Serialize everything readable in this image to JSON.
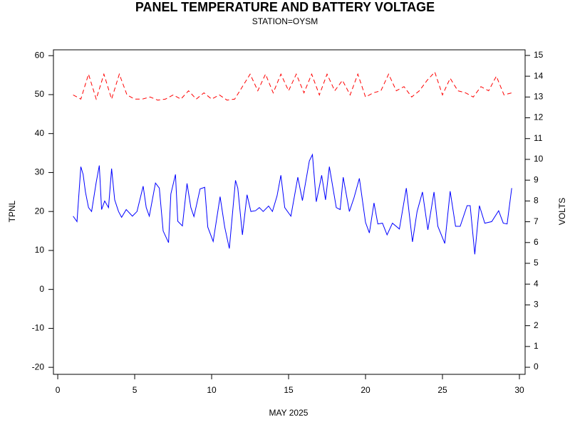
{
  "chart_data": {
    "type": "line",
    "title": "PANEL TEMPERATURE AND BATTERY VOLTAGE",
    "subtitle": "STATION=OYSM",
    "x_label": "MAY 2025",
    "y_label": "TPNL",
    "y2_label": "VOLTS",
    "xlim": [
      -0.28,
      30.37
    ],
    "xticks": [
      0,
      5,
      10,
      15,
      20,
      25,
      30
    ],
    "ylim": [
      -21.8,
      61.5
    ],
    "yticks": [
      -20,
      -10,
      0,
      10,
      20,
      30,
      40,
      50,
      60
    ],
    "y2lim": [
      -0.34,
      15.27
    ],
    "y2ticks": [
      0,
      1,
      2,
      3,
      4,
      5,
      6,
      7,
      8,
      9,
      10,
      11,
      12,
      13,
      14,
      15
    ],
    "series": [
      {
        "name": "TPNL",
        "color": "#0000ff",
        "axis": "y",
        "line_style": "solid",
        "x": [
          1.0,
          1.25,
          1.5,
          1.65,
          1.8,
          2.0,
          2.2,
          2.5,
          2.7,
          2.85,
          3.05,
          3.3,
          3.5,
          3.7,
          3.95,
          4.15,
          4.45,
          4.85,
          5.15,
          5.55,
          5.75,
          5.95,
          6.35,
          6.6,
          6.85,
          7.2,
          7.35,
          7.65,
          7.8,
          8.1,
          8.4,
          8.65,
          8.85,
          9.25,
          9.55,
          9.75,
          10.1,
          10.55,
          10.85,
          11.15,
          11.55,
          11.7,
          12.0,
          12.3,
          12.55,
          12.85,
          13.1,
          13.35,
          13.7,
          13.95,
          14.25,
          14.5,
          14.75,
          15.15,
          15.6,
          15.9,
          16.35,
          16.55,
          16.8,
          17.15,
          17.4,
          17.65,
          18.1,
          18.35,
          18.55,
          18.95,
          19.25,
          19.6,
          20.0,
          20.25,
          20.55,
          20.8,
          21.1,
          21.4,
          21.75,
          22.2,
          22.65,
          23.05,
          23.35,
          23.7,
          24.05,
          24.45,
          24.7,
          25.15,
          25.5,
          25.85,
          26.15,
          26.6,
          26.8,
          27.1,
          27.4,
          27.75,
          28.2,
          28.65,
          28.95,
          29.2,
          29.5
        ],
        "values": [
          18.8,
          17.4,
          31.5,
          29.5,
          25,
          21,
          20,
          27.5,
          31.8,
          20.5,
          22.7,
          21,
          31,
          23,
          20,
          18.5,
          20.5,
          18.8,
          20,
          26.5,
          21,
          18.8,
          27.3,
          26,
          15,
          12,
          24.5,
          29.5,
          17.5,
          16.3,
          27.2,
          21,
          18.7,
          25.8,
          26.2,
          16,
          12.3,
          23.8,
          16,
          10.5,
          28,
          26,
          14,
          24.3,
          20,
          20.2,
          21,
          20,
          21.4,
          20,
          24,
          29.3,
          21,
          18.8,
          28.8,
          22.8,
          33,
          34.6,
          22.5,
          29.3,
          23,
          31.5,
          21,
          20.5,
          28.8,
          20,
          23.5,
          28.5,
          17.2,
          14.5,
          22.2,
          16.8,
          17,
          14,
          17,
          15.5,
          26,
          12.2,
          20,
          25,
          15.3,
          25,
          16.2,
          11.8,
          25.2,
          16.2,
          16.2,
          21.5,
          21.5,
          9,
          21.5,
          17,
          17.4,
          20.2,
          17,
          16.8,
          26
        ]
      },
      {
        "name": "VOLTS",
        "color": "#ff0000",
        "axis": "y2",
        "line_style": "dashed",
        "x": [
          1,
          1.5,
          2,
          2.5,
          3,
          3.5,
          4,
          4.5,
          5,
          5.5,
          6,
          6.5,
          7,
          7.5,
          8,
          8.5,
          9,
          9.5,
          10,
          10.5,
          11,
          11.5,
          12,
          12.5,
          13,
          13.5,
          14,
          14.5,
          15,
          15.5,
          16,
          16.5,
          17,
          17.5,
          18,
          18.5,
          19,
          19.5,
          20,
          20.5,
          21,
          21.5,
          22,
          22.5,
          23,
          23.5,
          24,
          24.5,
          25,
          25.5,
          26,
          26.5,
          27,
          27.5,
          28,
          28.5,
          29,
          29.5
        ],
        "values": [
          13.1,
          12.9,
          14.1,
          12.9,
          14.1,
          12.9,
          14.1,
          13.1,
          12.9,
          12.9,
          13.0,
          12.85,
          12.9,
          13.1,
          12.9,
          13.3,
          12.9,
          13.2,
          12.9,
          13.1,
          12.85,
          12.9,
          13.5,
          14.1,
          13.3,
          14.1,
          13.2,
          14.1,
          13.3,
          14.1,
          13.2,
          14.1,
          13.1,
          14.1,
          13.3,
          13.8,
          13.1,
          14.1,
          13.0,
          13.2,
          13.3,
          14.1,
          13.3,
          13.5,
          13.0,
          13.3,
          13.8,
          14.2,
          13.1,
          13.9,
          13.3,
          13.2,
          13.0,
          13.5,
          13.3,
          14.0,
          13.1,
          13.2
        ]
      }
    ]
  }
}
